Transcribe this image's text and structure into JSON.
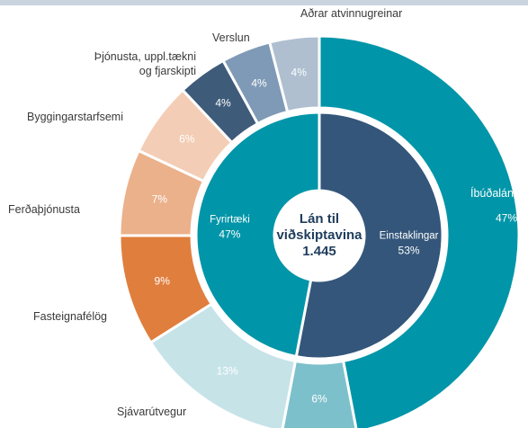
{
  "chart_data": {
    "type": "nested-donut",
    "center_label": "Lán til\nviðskiptavina\n1.445",
    "rings": [
      {
        "categories": [
          "Einstaklingar",
          "Fyrirtæki"
        ],
        "values": [
          53,
          47
        ],
        "value_labels": [
          "53%",
          "47%"
        ],
        "colors": [
          "#34567a",
          "#0095a8"
        ]
      },
      {
        "categories": [
          "Íbúðalán",
          null,
          "Sjávarútvegur",
          "Fasteignafélög",
          "Ferðaþjónusta",
          "Byggingarstarfsemi",
          "Þjónusta, uppl.tækni\nog fjarskipti",
          "Verslun",
          "Aðrar atvinnugreinar"
        ],
        "values": [
          47,
          6,
          13,
          9,
          7,
          6,
          4,
          4,
          4
        ],
        "value_labels": [
          "47%",
          "6%",
          "13%",
          "9%",
          "7%",
          "6%",
          "4%",
          "4%",
          "4%"
        ],
        "colors": [
          "#0095a8",
          "#7cc0cb",
          "#c6e3e8",
          "#e07e3d",
          "#ebb18b",
          "#f3cdb5",
          "#3e5b79",
          "#7f9ab6",
          "#afbfd0"
        ]
      }
    ]
  }
}
